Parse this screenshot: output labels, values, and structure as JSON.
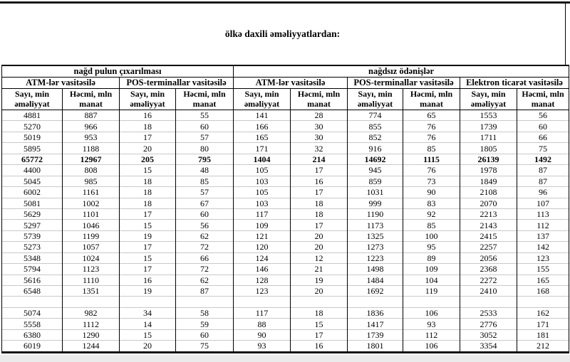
{
  "title": "ölkə daxili əməliyyatlardan:",
  "colors": {
    "border": "#000000",
    "gridline": "#c9c9c9",
    "top_rule": "#171717",
    "bottom_strip": "#ebebeb",
    "text": "#000000",
    "background": "#ffffff"
  },
  "table": {
    "group_headers": [
      {
        "label": "nağd pulun çıxarılması",
        "colspan": 4
      },
      {
        "label": "nağdsız ödənişlər",
        "colspan": 6
      }
    ],
    "channel_headers": [
      {
        "label": "ATM-lər vasitəsilə",
        "colspan": 2
      },
      {
        "label": "POS-terminallar vasitəsilə",
        "colspan": 2
      },
      {
        "label": "ATM-lər vasitəsilə",
        "colspan": 2
      },
      {
        "label": "POS-terminallar vasitəsilə",
        "colspan": 2
      },
      {
        "label": "Elektron ticarət vasitəsilə",
        "colspan": 2
      }
    ],
    "measure_headers": [
      {
        "line1": "Sayı, min",
        "line2": "əməliyyat"
      },
      {
        "line1": "Həcmi, mln",
        "line2": "manat"
      },
      {
        "line1": "Sayı, min",
        "line2": "əməliyyat"
      },
      {
        "line1": "Həcmi, mln",
        "line2": "manat"
      },
      {
        "line1": "Sayı, min",
        "line2": "əməliyyat"
      },
      {
        "line1": "Həcmi, mln",
        "line2": "manat"
      },
      {
        "line1": "Sayı, min",
        "line2": "əməliyyat"
      },
      {
        "line1": "Həcmi, mln",
        "line2": "manat"
      },
      {
        "line1": "Sayı, min",
        "line2": "əməliyyat"
      },
      {
        "line1": "Həcmi, mln",
        "line2": "manat"
      }
    ],
    "rows": [
      {
        "bold": false,
        "values": [
          "4881",
          "887",
          "16",
          "55",
          "141",
          "28",
          "774",
          "65",
          "1553",
          "56"
        ]
      },
      {
        "bold": false,
        "values": [
          "5270",
          "966",
          "18",
          "60",
          "166",
          "30",
          "855",
          "76",
          "1739",
          "60"
        ]
      },
      {
        "bold": false,
        "values": [
          "5019",
          "953",
          "17",
          "57",
          "165",
          "30",
          "852",
          "76",
          "1711",
          "66"
        ]
      },
      {
        "bold": false,
        "values": [
          "5895",
          "1188",
          "20",
          "80",
          "171",
          "32",
          "916",
          "85",
          "1805",
          "75"
        ]
      },
      {
        "bold": true,
        "values": [
          "65772",
          "12967",
          "205",
          "795",
          "1404",
          "214",
          "14692",
          "1115",
          "26139",
          "1492"
        ]
      },
      {
        "bold": false,
        "values": [
          "4400",
          "808",
          "15",
          "48",
          "105",
          "17",
          "945",
          "76",
          "1978",
          "87"
        ]
      },
      {
        "bold": false,
        "values": [
          "5045",
          "985",
          "18",
          "85",
          "103",
          "16",
          "859",
          "73",
          "1849",
          "87"
        ]
      },
      {
        "bold": false,
        "values": [
          "6002",
          "1161",
          "18",
          "57",
          "105",
          "17",
          "1031",
          "90",
          "2108",
          "96"
        ]
      },
      {
        "bold": false,
        "values": [
          "5081",
          "1002",
          "18",
          "67",
          "103",
          "18",
          "999",
          "83",
          "2070",
          "107"
        ]
      },
      {
        "bold": false,
        "values": [
          "5629",
          "1101",
          "17",
          "60",
          "117",
          "18",
          "1190",
          "92",
          "2213",
          "113"
        ]
      },
      {
        "bold": false,
        "values": [
          "5297",
          "1046",
          "15",
          "56",
          "109",
          "17",
          "1173",
          "85",
          "2143",
          "112"
        ]
      },
      {
        "bold": false,
        "values": [
          "5739",
          "1199",
          "19",
          "62",
          "121",
          "20",
          "1325",
          "100",
          "2415",
          "137"
        ]
      },
      {
        "bold": false,
        "values": [
          "5273",
          "1057",
          "17",
          "72",
          "120",
          "20",
          "1273",
          "95",
          "2257",
          "142"
        ]
      },
      {
        "bold": false,
        "values": [
          "5348",
          "1024",
          "15",
          "66",
          "124",
          "12",
          "1223",
          "89",
          "2056",
          "123"
        ]
      },
      {
        "bold": false,
        "values": [
          "5794",
          "1123",
          "17",
          "72",
          "146",
          "21",
          "1498",
          "109",
          "2368",
          "155"
        ]
      },
      {
        "bold": false,
        "values": [
          "5616",
          "1110",
          "16",
          "62",
          "128",
          "19",
          "1484",
          "104",
          "2272",
          "165"
        ]
      },
      {
        "bold": false,
        "values": [
          "6548",
          "1351",
          "19",
          "87",
          "123",
          "20",
          "1692",
          "119",
          "2410",
          "168"
        ]
      },
      {
        "bold": false,
        "values": [
          "",
          "",
          "",
          "",
          "",
          "",
          "",
          "",
          "",
          ""
        ]
      },
      {
        "bold": false,
        "values": [
          "5074",
          "982",
          "34",
          "58",
          "117",
          "18",
          "1836",
          "106",
          "2533",
          "162"
        ]
      },
      {
        "bold": false,
        "values": [
          "5558",
          "1112",
          "14",
          "59",
          "88",
          "15",
          "1417",
          "93",
          "2776",
          "171"
        ]
      },
      {
        "bold": false,
        "values": [
          "6380",
          "1290",
          "15",
          "60",
          "90",
          "17",
          "1739",
          "112",
          "3052",
          "181"
        ]
      },
      {
        "bold": false,
        "values": [
          "6019",
          "1244",
          "20",
          "75",
          "93",
          "16",
          "1801",
          "106",
          "3354",
          "212"
        ]
      }
    ]
  }
}
